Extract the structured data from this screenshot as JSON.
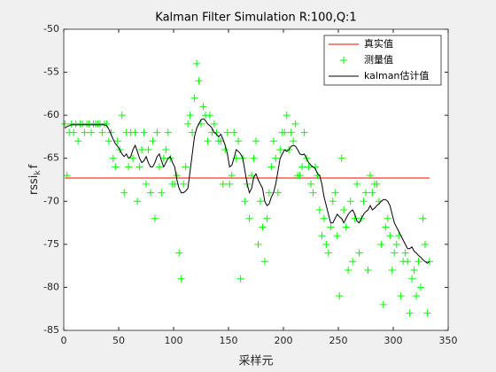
{
  "chart_data": {
    "type": "line",
    "title": "Kalman Filter Simulation R:100,Q:1",
    "xlabel": "采样元",
    "ylabel_parts": [
      "rssi",
      "k",
      "f"
    ],
    "xlim": [
      0,
      350
    ],
    "xticks": [
      0,
      50,
      100,
      150,
      200,
      250,
      300,
      350
    ],
    "ylim": [
      -85,
      -50
    ],
    "yticks": [
      -85,
      -80,
      -75,
      -70,
      -65,
      -60,
      -55,
      -50
    ],
    "grid": false,
    "legend": "upper right",
    "series": [
      {
        "name": "真实值",
        "color": "#ff0000",
        "style": "line",
        "x": [
          1,
          333
        ],
        "values": [
          -67.3,
          -67.3
        ]
      },
      {
        "name": "测量值",
        "color": "#00ff00",
        "style": "marker",
        "x": [
          1,
          3,
          5,
          7,
          9,
          11,
          13,
          15,
          17,
          19,
          21,
          23,
          25,
          27,
          29,
          31,
          33,
          35,
          37,
          39,
          41,
          43,
          45,
          47,
          49,
          51,
          53,
          55,
          57,
          59,
          61,
          63,
          65,
          67,
          69,
          71,
          73,
          75,
          77,
          79,
          81,
          83,
          85,
          87,
          89,
          91,
          93,
          95,
          97,
          99,
          101,
          103,
          105,
          107,
          109,
          111,
          113,
          115,
          117,
          119,
          121,
          123,
          125,
          127,
          129,
          131,
          133,
          135,
          137,
          139,
          141,
          143,
          145,
          147,
          149,
          151,
          153,
          155,
          157,
          159,
          161,
          163,
          165,
          167,
          169,
          171,
          173,
          175,
          177,
          179,
          181,
          183,
          185,
          187,
          189,
          191,
          193,
          195,
          197,
          199,
          201,
          203,
          205,
          207,
          209,
          211,
          213,
          215,
          217,
          219,
          221,
          223,
          225,
          227,
          229,
          231,
          233,
          235,
          237,
          239,
          241,
          243,
          245,
          247,
          249,
          251,
          253,
          255,
          257,
          259,
          261,
          263,
          265,
          267,
          269,
          271,
          273,
          275,
          277,
          279,
          281,
          283,
          285,
          287,
          289,
          291,
          293,
          295,
          297,
          299,
          301,
          303,
          305,
          307,
          309,
          311,
          313,
          315,
          317,
          319,
          321,
          323,
          325,
          327,
          329,
          331,
          333
        ],
        "values": [
          -61,
          -67,
          -62,
          -61,
          -62,
          -61,
          -63,
          -61,
          -61,
          -62,
          -61,
          -61,
          -62,
          -61,
          -61,
          -61,
          -61,
          -62,
          -61,
          -61,
          -63,
          -62,
          -65,
          -66,
          -63,
          -64,
          -60,
          -69,
          -62,
          -66,
          -62,
          -65,
          -62,
          -70,
          -66,
          -64,
          -62,
          -68,
          -64,
          -69,
          -63,
          -72,
          -62,
          -66,
          -69,
          -65,
          -64,
          -62,
          -65,
          -68,
          -68,
          -67,
          -76,
          -79,
          -68,
          -66,
          -61,
          -60,
          -62,
          -58,
          -54,
          -56,
          -61,
          -59,
          -60,
          -63,
          -60,
          -62,
          -61,
          -62,
          -63,
          -63,
          -68,
          -64,
          -62,
          -68,
          -67,
          -62,
          -65,
          -63,
          -79,
          -65,
          -70,
          -68,
          -72,
          -67,
          -65,
          -63,
          -75,
          -70,
          -73,
          -77,
          -72,
          -69,
          -66,
          -63,
          -65,
          -69,
          -64,
          -62,
          -62,
          -60,
          -64,
          -62,
          -63,
          -61,
          -67,
          -67,
          -66,
          -62,
          -65,
          -66,
          -68,
          -69,
          -66,
          -67,
          -71,
          -74,
          -72,
          -75,
          -76,
          -73,
          -70,
          -69,
          -74,
          -81,
          -65,
          -71,
          -73,
          -78,
          -70,
          -77,
          -72,
          -68,
          -76,
          -72,
          -70,
          -69,
          -78,
          -67,
          -69,
          -68,
          -68,
          -70,
          -75,
          -82,
          -73,
          -72,
          -74,
          -78,
          -76,
          -75,
          -74,
          -81,
          -77,
          -76,
          -77,
          -83,
          -79,
          -78,
          -81,
          -77,
          -80,
          -72,
          -75,
          -83,
          -77
        ]
      },
      {
        "name": "kalman估计值",
        "color": "#000000",
        "style": "line",
        "x": [
          1,
          3,
          5,
          7,
          9,
          11,
          13,
          15,
          17,
          19,
          21,
          23,
          25,
          27,
          29,
          31,
          33,
          35,
          37,
          39,
          41,
          43,
          45,
          47,
          49,
          51,
          53,
          55,
          57,
          59,
          61,
          63,
          65,
          67,
          69,
          71,
          73,
          75,
          77,
          79,
          81,
          83,
          85,
          87,
          89,
          91,
          93,
          95,
          97,
          99,
          101,
          103,
          105,
          107,
          109,
          111,
          113,
          115,
          117,
          119,
          121,
          123,
          125,
          127,
          129,
          131,
          133,
          135,
          137,
          139,
          141,
          143,
          145,
          147,
          149,
          151,
          153,
          155,
          157,
          159,
          161,
          163,
          165,
          167,
          169,
          171,
          173,
          175,
          177,
          179,
          181,
          183,
          185,
          187,
          189,
          191,
          193,
          195,
          197,
          199,
          201,
          203,
          205,
          207,
          209,
          211,
          213,
          215,
          217,
          219,
          221,
          223,
          225,
          227,
          229,
          231,
          233,
          235,
          237,
          239,
          241,
          243,
          245,
          247,
          249,
          251,
          253,
          255,
          257,
          259,
          261,
          263,
          265,
          267,
          269,
          271,
          273,
          275,
          277,
          279,
          281,
          283,
          285,
          287,
          289,
          291,
          293,
          295,
          297,
          299,
          301,
          303,
          305,
          307,
          309,
          311,
          313,
          315,
          317,
          319,
          321,
          323,
          325,
          327,
          329,
          331,
          333
        ],
        "values": [
          -61.5,
          -61.3,
          -61.2,
          -61.1,
          -61.1,
          -61.1,
          -61.1,
          -61.1,
          -61.1,
          -61.1,
          -61.1,
          -61.1,
          -61.1,
          -61.1,
          -61.1,
          -61.1,
          -61.1,
          -61.1,
          -61.1,
          -61.2,
          -61.6,
          -62.2,
          -62.8,
          -63.3,
          -63.6,
          -64.0,
          -64.5,
          -64.8,
          -64.5,
          -65.0,
          -64.8,
          -64.0,
          -63.5,
          -64.2,
          -65.0,
          -65.5,
          -65.3,
          -64.8,
          -65.5,
          -66.0,
          -66.0,
          -65.5,
          -64.8,
          -64.5,
          -65.3,
          -66.0,
          -65.5,
          -65.0,
          -64.8,
          -65.5,
          -66.0,
          -67.5,
          -68.5,
          -69.0,
          -69.0,
          -68.8,
          -68.5,
          -66.5,
          -64.5,
          -62.5,
          -61.5,
          -61.0,
          -60.5,
          -60.4,
          -60.6,
          -61.0,
          -61.2,
          -61.5,
          -62.0,
          -62.2,
          -62.5,
          -62.2,
          -62.8,
          -63.5,
          -64.5,
          -66.0,
          -65.8,
          -65.0,
          -64.0,
          -64.2,
          -64.5,
          -65.0,
          -66.5,
          -68.0,
          -69.0,
          -68.5,
          -67.2,
          -66.8,
          -67.5,
          -68.0,
          -68.5,
          -70.0,
          -70.5,
          -70.3,
          -69.5,
          -69.0,
          -68.0,
          -66.5,
          -65.0,
          -64.5,
          -64.0,
          -64.2,
          -64.0,
          -63.6,
          -63.5,
          -63.6,
          -64.0,
          -64.5,
          -64.6,
          -64.5,
          -65.0,
          -65.5,
          -65.8,
          -66.0,
          -66.2,
          -66.8,
          -67.0,
          -68.0,
          -69.5,
          -70.5,
          -71.5,
          -72.5,
          -72.5,
          -72.0,
          -71.5,
          -71.8,
          -72.0,
          -72.5,
          -72.0,
          -71.5,
          -71.2,
          -71.0,
          -71.5,
          -72.3,
          -72.5,
          -72.0,
          -71.5,
          -71.2,
          -71.0,
          -70.5,
          -71.0,
          -70.8,
          -70.5,
          -70.3,
          -70.0,
          -69.8,
          -69.8,
          -70.0,
          -70.5,
          -71.5,
          -72.5,
          -73.0,
          -73.5,
          -74.0,
          -74.5,
          -75.0,
          -75.5,
          -75.5,
          -75.3,
          -75.8,
          -76.0,
          -76.3,
          -76.5,
          -76.8,
          -77.0,
          -77.2,
          -77.0
        ]
      }
    ]
  }
}
